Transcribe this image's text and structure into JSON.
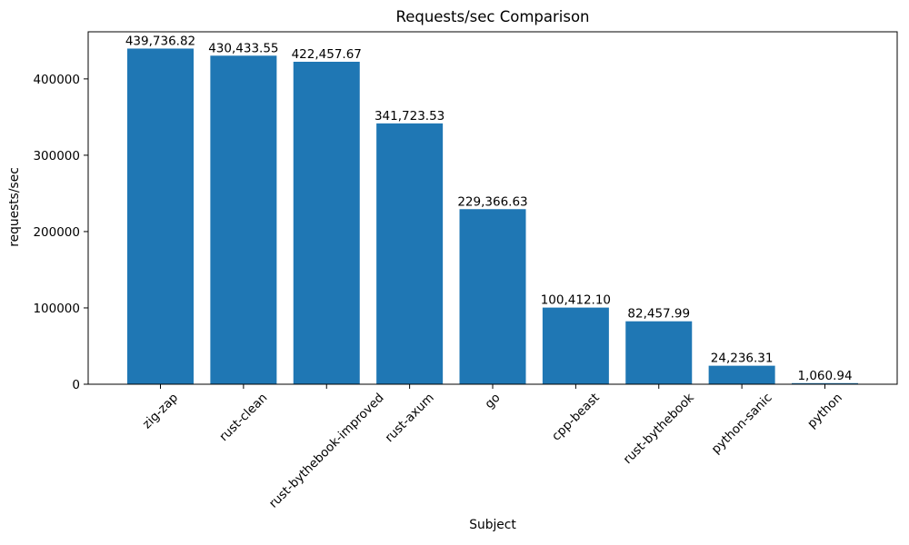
{
  "chart_data": {
    "type": "bar",
    "title": "Requests/sec Comparison",
    "xlabel": "Subject",
    "ylabel": "requests/sec",
    "categories": [
      "zig-zap",
      "rust-clean",
      "rust-bythebook-improved",
      "rust-axum",
      "go",
      "cpp-beast",
      "rust-bythebook",
      "python-sanic",
      "python"
    ],
    "values": [
      439736.82,
      430433.55,
      422457.67,
      341723.53,
      229366.63,
      100412.1,
      82457.99,
      24236.31,
      1060.94
    ],
    "value_labels": [
      "439,736.82",
      "430,433.55",
      "422,457.67",
      "341,723.53",
      "229,366.63",
      "100,412.10",
      "82,457.99",
      "24,236.31",
      "1,060.94"
    ],
    "yticks": [
      0,
      100000,
      200000,
      300000,
      400000
    ],
    "ytick_labels": [
      "0",
      "100000",
      "200000",
      "300000",
      "400000"
    ],
    "ylim": [
      0,
      461724
    ],
    "x_tick_rotation": 45,
    "grid": false,
    "legend": false,
    "bar_color": "#1f77b4",
    "spine_color": "#000000",
    "background_color": "#ffffff"
  }
}
